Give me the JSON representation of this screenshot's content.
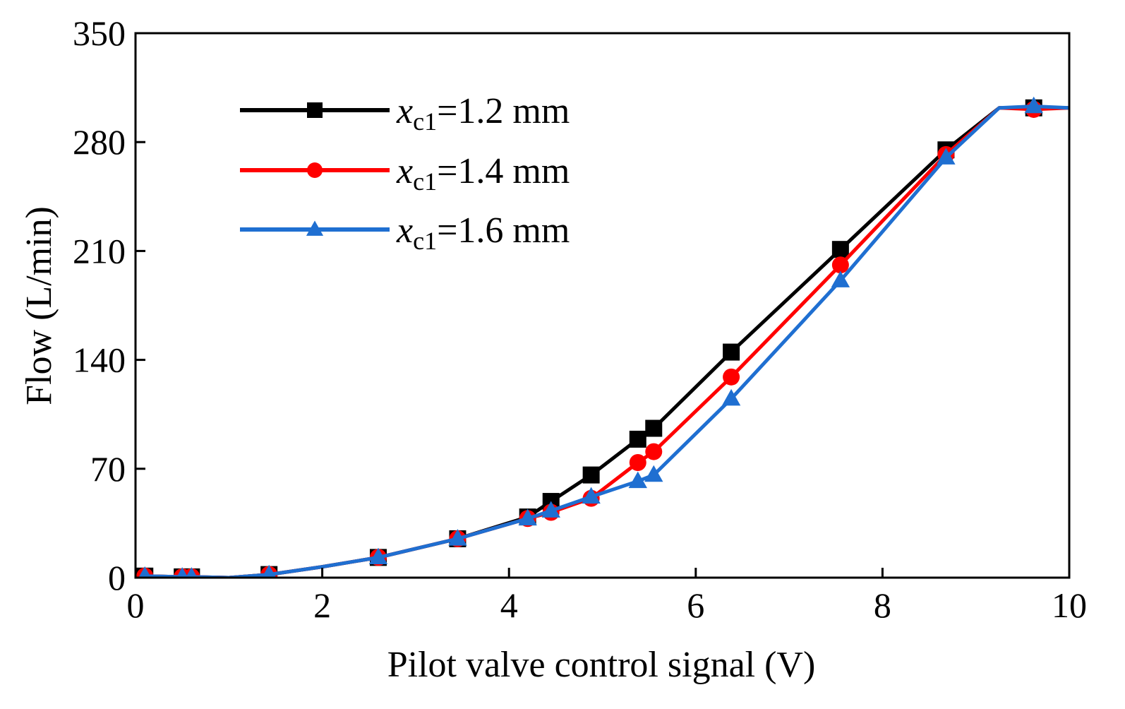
{
  "chart_data": {
    "type": "line",
    "xlabel": "Pilot valve control signal (V)",
    "ylabel": "Flow (L/min)",
    "xlim": [
      0,
      10
    ],
    "ylim": [
      0,
      350
    ],
    "xticks": [
      0,
      2,
      4,
      6,
      8,
      10
    ],
    "yticks": [
      0,
      70,
      140,
      210,
      280,
      350
    ],
    "xtick_labels": [
      "0",
      "2",
      "4",
      "6",
      "8",
      "10"
    ],
    "ytick_labels": [
      "0",
      "70",
      "140",
      "210",
      "280",
      "350"
    ],
    "grid": false,
    "legend_position": "top-left",
    "series": [
      {
        "name": "x_c1=1.2 mm",
        "label_main": "x",
        "label_sub": "c1",
        "label_tail": "=1.2 mm",
        "color": "#000000",
        "marker": "square",
        "line": [
          [
            0.1,
            1
          ],
          [
            0.5,
            0.5
          ],
          [
            0.6,
            0.5
          ],
          [
            1.0,
            0
          ],
          [
            1.43,
            2
          ],
          [
            2,
            7
          ],
          [
            2.6,
            13
          ],
          [
            3.45,
            25
          ],
          [
            4.2,
            39
          ],
          [
            4.45,
            49
          ],
          [
            4.88,
            66
          ],
          [
            5.38,
            89
          ],
          [
            5.55,
            96
          ],
          [
            6.38,
            145
          ],
          [
            7.55,
            211
          ],
          [
            8.68,
            275
          ],
          [
            9.25,
            302
          ],
          [
            9.62,
            302
          ],
          [
            10,
            302
          ]
        ],
        "markers": [
          [
            0.1,
            1
          ],
          [
            0.5,
            0.5
          ],
          [
            0.6,
            0.5
          ],
          [
            1.43,
            2
          ],
          [
            2.6,
            13
          ],
          [
            3.45,
            25
          ],
          [
            4.2,
            39
          ],
          [
            4.45,
            49
          ],
          [
            4.88,
            66
          ],
          [
            5.38,
            89
          ],
          [
            5.55,
            96
          ],
          [
            6.38,
            145
          ],
          [
            7.55,
            211
          ],
          [
            8.68,
            275
          ],
          [
            9.62,
            302
          ]
        ]
      },
      {
        "name": "x_c1=1.4 mm",
        "label_main": "x",
        "label_sub": "c1",
        "label_tail": "=1.4 mm",
        "color": "#ff0000",
        "marker": "circle",
        "line": [
          [
            0.1,
            1
          ],
          [
            0.5,
            0.5
          ],
          [
            0.6,
            0.5
          ],
          [
            1.0,
            0
          ],
          [
            1.43,
            2
          ],
          [
            2,
            7
          ],
          [
            2.6,
            13
          ],
          [
            3.45,
            25
          ],
          [
            4.2,
            38
          ],
          [
            4.45,
            42
          ],
          [
            4.88,
            51
          ],
          [
            5.38,
            74
          ],
          [
            5.55,
            81
          ],
          [
            6.38,
            129
          ],
          [
            7.55,
            201
          ],
          [
            8.68,
            272
          ],
          [
            9.25,
            302
          ],
          [
            9.62,
            301
          ],
          [
            10,
            302
          ]
        ],
        "markers": [
          [
            0.1,
            1
          ],
          [
            0.5,
            0.5
          ],
          [
            0.6,
            0.5
          ],
          [
            1.43,
            2
          ],
          [
            2.6,
            13
          ],
          [
            3.45,
            25
          ],
          [
            4.2,
            38
          ],
          [
            4.45,
            42
          ],
          [
            4.88,
            51
          ],
          [
            5.38,
            74
          ],
          [
            5.55,
            81
          ],
          [
            6.38,
            129
          ],
          [
            7.55,
            201
          ],
          [
            8.68,
            272
          ],
          [
            9.62,
            301
          ]
        ]
      },
      {
        "name": "x_c1=1.6 mm",
        "label_main": "x",
        "label_sub": "c1",
        "label_tail": "=1.6 mm",
        "color": "#1f6fd1",
        "marker": "triangle",
        "line": [
          [
            0.1,
            1
          ],
          [
            0.5,
            0.5
          ],
          [
            0.6,
            0.5
          ],
          [
            1.0,
            0
          ],
          [
            1.43,
            2
          ],
          [
            2,
            7
          ],
          [
            2.6,
            13
          ],
          [
            3.45,
            25
          ],
          [
            4.2,
            38
          ],
          [
            4.45,
            43
          ],
          [
            4.88,
            52
          ],
          [
            5.38,
            62
          ],
          [
            5.55,
            66
          ],
          [
            6.38,
            115
          ],
          [
            7.55,
            191
          ],
          [
            8.68,
            270
          ],
          [
            9.25,
            302
          ],
          [
            9.62,
            303
          ],
          [
            10,
            302
          ]
        ],
        "markers": [
          [
            0.1,
            1
          ],
          [
            0.5,
            0.5
          ],
          [
            0.6,
            0.5
          ],
          [
            1.43,
            2
          ],
          [
            2.6,
            13
          ],
          [
            3.45,
            25
          ],
          [
            4.2,
            38
          ],
          [
            4.45,
            43
          ],
          [
            4.88,
            52
          ],
          [
            5.38,
            62
          ],
          [
            5.55,
            66
          ],
          [
            6.38,
            115
          ],
          [
            7.55,
            191
          ],
          [
            8.68,
            270
          ],
          [
            9.62,
            303
          ]
        ]
      }
    ]
  }
}
